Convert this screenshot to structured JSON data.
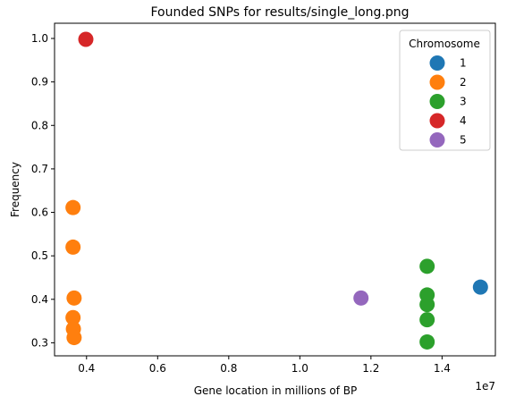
{
  "chart_data": {
    "type": "scatter",
    "title": "Founded SNPs for results/single_long.png",
    "xlabel": "Gene location in millions of BP",
    "ylabel": "Frequency",
    "x_offset_label": "1e7",
    "xlim": [
      3100000,
      15500000
    ],
    "ylim": [
      0.27,
      1.035
    ],
    "xticks": [
      {
        "value": 4000000,
        "label": "0.4"
      },
      {
        "value": 6000000,
        "label": "0.6"
      },
      {
        "value": 8000000,
        "label": "0.8"
      },
      {
        "value": 10000000,
        "label": "1.0"
      },
      {
        "value": 12000000,
        "label": "1.2"
      },
      {
        "value": 14000000,
        "label": "1.4"
      }
    ],
    "yticks": [
      {
        "value": 0.3,
        "label": "0.3"
      },
      {
        "value": 0.4,
        "label": "0.4"
      },
      {
        "value": 0.5,
        "label": "0.5"
      },
      {
        "value": 0.6,
        "label": "0.6"
      },
      {
        "value": 0.7,
        "label": "0.7"
      },
      {
        "value": 0.8,
        "label": "0.8"
      },
      {
        "value": 0.9,
        "label": "0.9"
      },
      {
        "value": 1.0,
        "label": "1.0"
      }
    ],
    "grid": false,
    "legend": {
      "title": "Chromosome",
      "placement": "top-right"
    },
    "series": [
      {
        "name": "1",
        "color": "#1f77b4",
        "points": [
          {
            "x": 15080000,
            "y": 0.428
          }
        ]
      },
      {
        "name": "2",
        "color": "#ff7f0e",
        "points": [
          {
            "x": 3620000,
            "y": 0.611
          },
          {
            "x": 3620000,
            "y": 0.52
          },
          {
            "x": 3650000,
            "y": 0.403
          },
          {
            "x": 3620000,
            "y": 0.358
          },
          {
            "x": 3630000,
            "y": 0.332
          },
          {
            "x": 3650000,
            "y": 0.312
          }
        ]
      },
      {
        "name": "3",
        "color": "#2ca02c",
        "points": [
          {
            "x": 13580000,
            "y": 0.476
          },
          {
            "x": 13580000,
            "y": 0.41
          },
          {
            "x": 13580000,
            "y": 0.388
          },
          {
            "x": 13580000,
            "y": 0.353
          },
          {
            "x": 13580000,
            "y": 0.302
          }
        ]
      },
      {
        "name": "4",
        "color": "#d62728",
        "points": [
          {
            "x": 3980000,
            "y": 0.998
          }
        ]
      },
      {
        "name": "5",
        "color": "#9467bd",
        "points": [
          {
            "x": 11720000,
            "y": 0.403
          }
        ]
      }
    ]
  }
}
